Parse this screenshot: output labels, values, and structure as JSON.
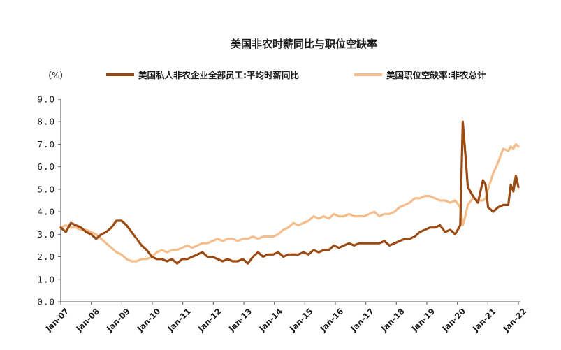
{
  "chart_data": {
    "type": "line",
    "title": "美国非农时薪同比与职位空缺率",
    "unit_label": "（%）",
    "ylim": [
      0,
      9
    ],
    "yticks": [
      "0.0",
      "1.0",
      "2.0",
      "3.0",
      "4.0",
      "5.0",
      "6.0",
      "7.0",
      "8.0",
      "9.0"
    ],
    "xticks": [
      "Jan-07",
      "Jan-08",
      "Jan-09",
      "Jan-10",
      "Jan-11",
      "Jan-12",
      "Jan-13",
      "Jan-14",
      "Jan-15",
      "Jan-16",
      "Jan-17",
      "Jan-18",
      "Jan-19",
      "Jan-20",
      "Jan-21",
      "Jan-22"
    ],
    "x_start": "2007-01",
    "x_end": "2022-02",
    "grid": false,
    "legend_position": "top",
    "series": [
      {
        "name": "美国私人非农企业全部员工:平均时薪同比",
        "color": "#9b4a12",
        "points": [
          [
            "2007-01",
            3.3
          ],
          [
            "2007-03",
            3.1
          ],
          [
            "2007-05",
            3.5
          ],
          [
            "2007-07",
            3.4
          ],
          [
            "2007-09",
            3.3
          ],
          [
            "2007-11",
            3.1
          ],
          [
            "2008-01",
            3.0
          ],
          [
            "2008-03",
            2.8
          ],
          [
            "2008-05",
            3.0
          ],
          [
            "2008-07",
            3.1
          ],
          [
            "2008-09",
            3.3
          ],
          [
            "2008-11",
            3.6
          ],
          [
            "2009-01",
            3.6
          ],
          [
            "2009-03",
            3.4
          ],
          [
            "2009-05",
            3.1
          ],
          [
            "2009-07",
            2.8
          ],
          [
            "2009-09",
            2.5
          ],
          [
            "2009-11",
            2.3
          ],
          [
            "2010-01",
            2.0
          ],
          [
            "2010-03",
            1.9
          ],
          [
            "2010-05",
            1.9
          ],
          [
            "2010-07",
            1.8
          ],
          [
            "2010-09",
            1.9
          ],
          [
            "2010-11",
            1.7
          ],
          [
            "2011-01",
            1.9
          ],
          [
            "2011-03",
            1.9
          ],
          [
            "2011-05",
            2.0
          ],
          [
            "2011-07",
            2.1
          ],
          [
            "2011-09",
            2.2
          ],
          [
            "2011-11",
            2.0
          ],
          [
            "2012-01",
            2.0
          ],
          [
            "2012-03",
            1.9
          ],
          [
            "2012-05",
            1.8
          ],
          [
            "2012-07",
            1.9
          ],
          [
            "2012-09",
            1.8
          ],
          [
            "2012-11",
            1.8
          ],
          [
            "2013-01",
            1.9
          ],
          [
            "2013-03",
            1.7
          ],
          [
            "2013-05",
            2.0
          ],
          [
            "2013-07",
            2.2
          ],
          [
            "2013-09",
            2.0
          ],
          [
            "2013-11",
            2.1
          ],
          [
            "2014-01",
            2.1
          ],
          [
            "2014-03",
            2.2
          ],
          [
            "2014-05",
            2.0
          ],
          [
            "2014-07",
            2.1
          ],
          [
            "2014-09",
            2.1
          ],
          [
            "2014-11",
            2.1
          ],
          [
            "2015-01",
            2.2
          ],
          [
            "2015-03",
            2.1
          ],
          [
            "2015-05",
            2.3
          ],
          [
            "2015-07",
            2.2
          ],
          [
            "2015-09",
            2.3
          ],
          [
            "2015-11",
            2.3
          ],
          [
            "2016-01",
            2.5
          ],
          [
            "2016-03",
            2.4
          ],
          [
            "2016-05",
            2.5
          ],
          [
            "2016-07",
            2.6
          ],
          [
            "2016-09",
            2.5
          ],
          [
            "2016-11",
            2.6
          ],
          [
            "2017-01",
            2.6
          ],
          [
            "2017-03",
            2.6
          ],
          [
            "2017-05",
            2.6
          ],
          [
            "2017-07",
            2.6
          ],
          [
            "2017-09",
            2.7
          ],
          [
            "2017-11",
            2.5
          ],
          [
            "2018-01",
            2.6
          ],
          [
            "2018-03",
            2.7
          ],
          [
            "2018-05",
            2.8
          ],
          [
            "2018-07",
            2.8
          ],
          [
            "2018-09",
            2.9
          ],
          [
            "2018-11",
            3.1
          ],
          [
            "2019-01",
            3.2
          ],
          [
            "2019-03",
            3.3
          ],
          [
            "2019-05",
            3.3
          ],
          [
            "2019-07",
            3.4
          ],
          [
            "2019-09",
            3.1
          ],
          [
            "2019-11",
            3.2
          ],
          [
            "2020-01",
            3.0
          ],
          [
            "2020-03",
            3.4
          ],
          [
            "2020-04",
            8.0
          ],
          [
            "2020-05",
            6.6
          ],
          [
            "2020-06",
            5.1
          ],
          [
            "2020-08",
            4.7
          ],
          [
            "2020-10",
            4.4
          ],
          [
            "2020-12",
            5.4
          ],
          [
            "2021-01",
            5.2
          ],
          [
            "2021-02",
            4.2
          ],
          [
            "2021-04",
            4.0
          ],
          [
            "2021-06",
            4.2
          ],
          [
            "2021-08",
            4.3
          ],
          [
            "2021-10",
            4.3
          ],
          [
            "2021-11",
            5.2
          ],
          [
            "2021-12",
            4.9
          ],
          [
            "2022-01",
            5.6
          ],
          [
            "2022-02",
            5.1
          ]
        ]
      },
      {
        "name": "美国职位空缺率:非农总计",
        "color": "#f5bd8c",
        "points": [
          [
            "2007-01",
            3.3
          ],
          [
            "2007-03",
            3.4
          ],
          [
            "2007-05",
            3.3
          ],
          [
            "2007-07",
            3.3
          ],
          [
            "2007-09",
            3.2
          ],
          [
            "2007-11",
            3.2
          ],
          [
            "2008-01",
            3.1
          ],
          [
            "2008-03",
            3.0
          ],
          [
            "2008-05",
            2.8
          ],
          [
            "2008-07",
            2.6
          ],
          [
            "2008-09",
            2.4
          ],
          [
            "2008-11",
            2.2
          ],
          [
            "2009-01",
            2.1
          ],
          [
            "2009-03",
            1.9
          ],
          [
            "2009-05",
            1.8
          ],
          [
            "2009-07",
            1.8
          ],
          [
            "2009-09",
            1.9
          ],
          [
            "2009-11",
            1.9
          ],
          [
            "2010-01",
            2.0
          ],
          [
            "2010-03",
            2.2
          ],
          [
            "2010-05",
            2.3
          ],
          [
            "2010-07",
            2.2
          ],
          [
            "2010-09",
            2.3
          ],
          [
            "2010-11",
            2.3
          ],
          [
            "2011-01",
            2.4
          ],
          [
            "2011-03",
            2.5
          ],
          [
            "2011-05",
            2.4
          ],
          [
            "2011-07",
            2.5
          ],
          [
            "2011-09",
            2.6
          ],
          [
            "2011-11",
            2.6
          ],
          [
            "2012-01",
            2.7
          ],
          [
            "2012-03",
            2.8
          ],
          [
            "2012-05",
            2.7
          ],
          [
            "2012-07",
            2.8
          ],
          [
            "2012-09",
            2.8
          ],
          [
            "2012-11",
            2.7
          ],
          [
            "2013-01",
            2.8
          ],
          [
            "2013-03",
            2.8
          ],
          [
            "2013-05",
            2.9
          ],
          [
            "2013-07",
            2.8
          ],
          [
            "2013-09",
            2.9
          ],
          [
            "2013-11",
            2.9
          ],
          [
            "2014-01",
            2.9
          ],
          [
            "2014-03",
            3.0
          ],
          [
            "2014-05",
            3.2
          ],
          [
            "2014-07",
            3.3
          ],
          [
            "2014-09",
            3.5
          ],
          [
            "2014-11",
            3.4
          ],
          [
            "2015-01",
            3.5
          ],
          [
            "2015-03",
            3.6
          ],
          [
            "2015-05",
            3.8
          ],
          [
            "2015-07",
            3.7
          ],
          [
            "2015-09",
            3.8
          ],
          [
            "2015-11",
            3.7
          ],
          [
            "2016-01",
            3.9
          ],
          [
            "2016-03",
            3.8
          ],
          [
            "2016-05",
            3.8
          ],
          [
            "2016-07",
            3.9
          ],
          [
            "2016-09",
            3.8
          ],
          [
            "2016-11",
            3.8
          ],
          [
            "2017-01",
            3.8
          ],
          [
            "2017-03",
            3.9
          ],
          [
            "2017-05",
            4.0
          ],
          [
            "2017-07",
            3.8
          ],
          [
            "2017-09",
            3.9
          ],
          [
            "2017-11",
            3.9
          ],
          [
            "2018-01",
            4.0
          ],
          [
            "2018-03",
            4.2
          ],
          [
            "2018-05",
            4.3
          ],
          [
            "2018-07",
            4.4
          ],
          [
            "2018-09",
            4.6
          ],
          [
            "2018-11",
            4.6
          ],
          [
            "2019-01",
            4.7
          ],
          [
            "2019-03",
            4.7
          ],
          [
            "2019-05",
            4.6
          ],
          [
            "2019-07",
            4.5
          ],
          [
            "2019-09",
            4.5
          ],
          [
            "2019-11",
            4.4
          ],
          [
            "2020-01",
            4.5
          ],
          [
            "2020-03",
            4.2
          ],
          [
            "2020-04",
            3.4
          ],
          [
            "2020-05",
            3.8
          ],
          [
            "2020-06",
            4.3
          ],
          [
            "2020-08",
            4.6
          ],
          [
            "2020-10",
            4.5
          ],
          [
            "2020-12",
            4.5
          ],
          [
            "2021-01",
            4.6
          ],
          [
            "2021-02",
            5.0
          ],
          [
            "2021-04",
            5.7
          ],
          [
            "2021-06",
            6.2
          ],
          [
            "2021-08",
            6.8
          ],
          [
            "2021-10",
            6.7
          ],
          [
            "2021-11",
            6.9
          ],
          [
            "2021-12",
            6.8
          ],
          [
            "2022-01",
            7.0
          ],
          [
            "2022-02",
            6.9
          ]
        ]
      }
    ]
  }
}
